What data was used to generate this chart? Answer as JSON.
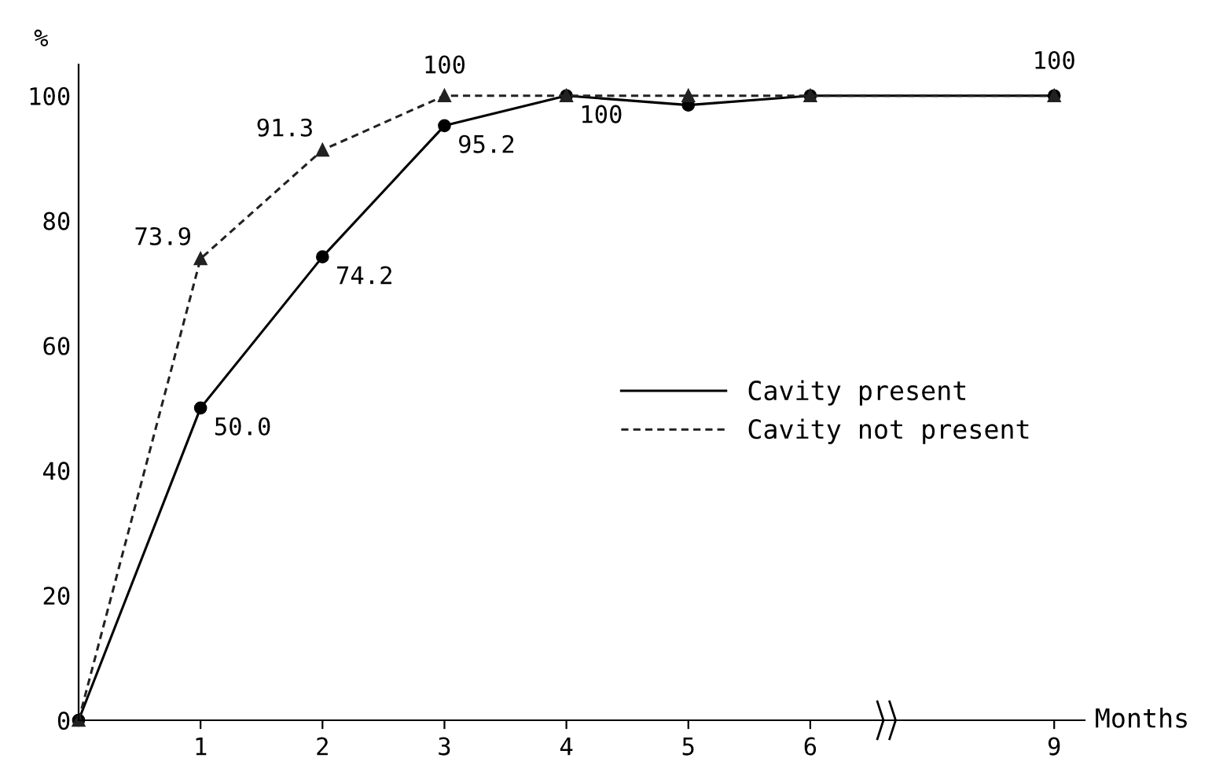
{
  "chart_data": {
    "type": "line",
    "ylabel": "%",
    "xlabel": "Months",
    "categories": [
      null,
      "1",
      "2",
      "3",
      "4",
      "5",
      "6",
      null,
      "9"
    ],
    "series": [
      {
        "name": "Cavity present",
        "color": "#000000",
        "marker": "circle",
        "line_style": "solid",
        "values": [
          0,
          50.0,
          74.2,
          95.2,
          100,
          98.5,
          100,
          null,
          100
        ],
        "value_labels": [
          null,
          "50.0",
          "74.2",
          "95.2",
          "100",
          null,
          null,
          null,
          "100"
        ]
      },
      {
        "name": "Cavity not present",
        "color": "#222222",
        "marker": "triangle",
        "line_style": "dashed",
        "values": [
          0,
          73.9,
          91.3,
          100,
          100,
          100,
          100,
          null,
          100
        ],
        "value_labels": [
          null,
          "73.9",
          "91.3",
          "100",
          null,
          null,
          null,
          null,
          null
        ]
      }
    ],
    "ylim": [
      0,
      105
    ],
    "yticks": [
      0,
      20,
      40,
      60,
      80,
      100
    ],
    "grid": false,
    "legend": "right"
  }
}
